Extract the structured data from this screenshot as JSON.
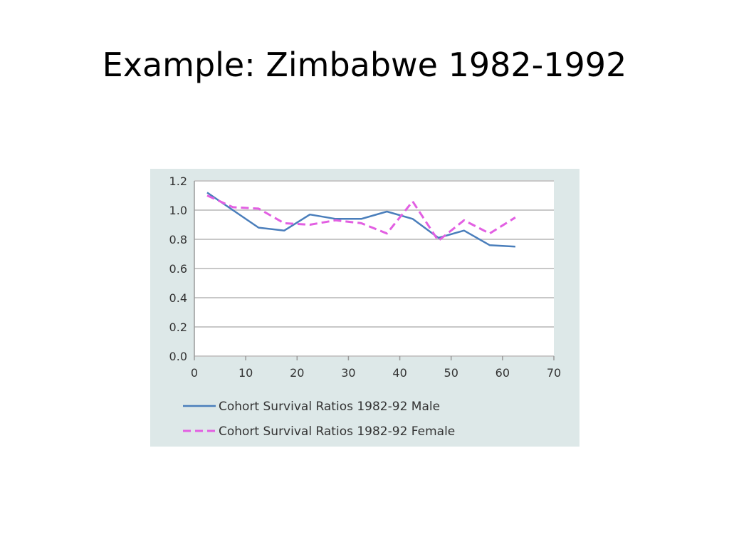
{
  "slide": {
    "title": "Example: Zimbabwe 1982-1992"
  },
  "chart_data": {
    "type": "line",
    "title": "",
    "xlabel": "",
    "ylabel": "",
    "xlim": [
      0,
      70
    ],
    "ylim": [
      0,
      1.2
    ],
    "x_ticks": [
      0,
      10,
      20,
      30,
      40,
      50,
      60,
      70
    ],
    "x_tick_labels": [
      "0",
      "10",
      "20",
      "30",
      "40",
      "50",
      "60",
      "70"
    ],
    "y_ticks": [
      0,
      0.2,
      0.4,
      0.6,
      0.8,
      1.0,
      1.2
    ],
    "y_tick_labels": [
      "0.0",
      "0.2",
      "0.4",
      "0.6",
      "0.8",
      "1.0",
      "1.2"
    ],
    "grid": "horizontal",
    "legend_position": "bottom",
    "series": [
      {
        "name": "Cohort Survival Ratios 1982-92 Male",
        "color": "#4a7ebb",
        "style": "solid",
        "x": [
          2.5,
          7.5,
          12.5,
          17.5,
          22.5,
          27.5,
          32.5,
          37.5,
          42.5,
          47.5,
          52.5,
          57.5,
          62.5
        ],
        "y": [
          1.12,
          1.0,
          0.88,
          0.86,
          0.97,
          0.94,
          0.94,
          0.99,
          0.94,
          0.81,
          0.86,
          0.76,
          0.75
        ]
      },
      {
        "name": "Cohort Survival Ratios 1982-92 Female",
        "color": "#e25fe2",
        "style": "dashed",
        "x": [
          2.5,
          7.5,
          12.5,
          17.5,
          22.5,
          27.5,
          32.5,
          37.5,
          42.5,
          47.5,
          52.5,
          57.5,
          62.5
        ],
        "y": [
          1.1,
          1.02,
          1.01,
          0.91,
          0.9,
          0.93,
          0.91,
          0.84,
          1.06,
          0.79,
          0.93,
          0.84,
          0.95
        ]
      }
    ]
  }
}
